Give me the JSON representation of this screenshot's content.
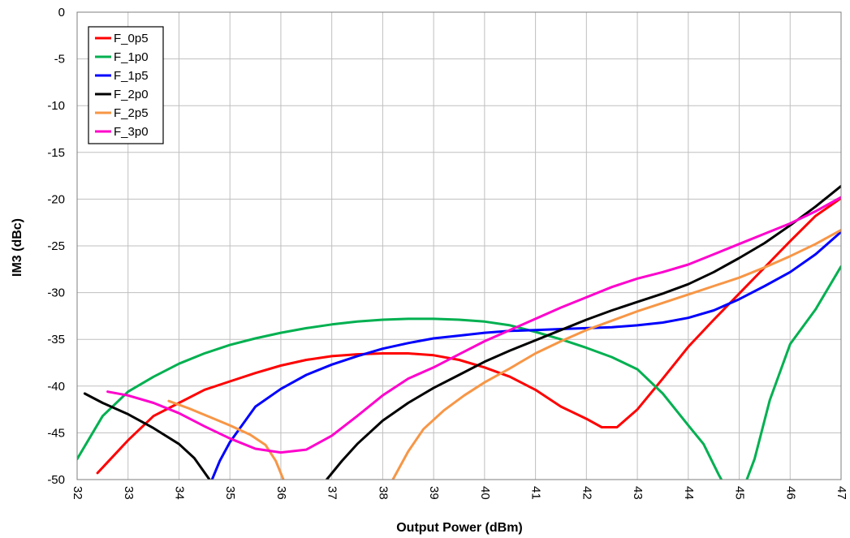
{
  "chart_data": {
    "type": "line",
    "xlabel": "Output Power (dBm)",
    "ylabel": "IM3 (dBc)",
    "xlim": [
      32,
      47
    ],
    "ylim": [
      -50,
      0
    ],
    "x_ticks": [
      "32",
      "33",
      "34",
      "35",
      "36",
      "37",
      "38",
      "39",
      "40",
      "41",
      "42",
      "43",
      "44",
      "45",
      "46",
      "47"
    ],
    "y_ticks": [
      "0",
      "-5",
      "-10",
      "-15",
      "-20",
      "-25",
      "-30",
      "-35",
      "-40",
      "-45",
      "-50"
    ],
    "grid": true,
    "legend_position": "top-left",
    "series": [
      {
        "name": "F_0p5",
        "color": "#ff0000",
        "points": [
          [
            32.4,
            -49.3
          ],
          [
            33,
            -45.8
          ],
          [
            33.5,
            -43.2
          ],
          [
            34,
            -41.8
          ],
          [
            34.5,
            -40.4
          ],
          [
            35,
            -39.5
          ],
          [
            35.5,
            -38.6
          ],
          [
            36,
            -37.8
          ],
          [
            36.5,
            -37.2
          ],
          [
            37,
            -36.8
          ],
          [
            37.5,
            -36.6
          ],
          [
            38,
            -36.5
          ],
          [
            38.5,
            -36.5
          ],
          [
            39,
            -36.7
          ],
          [
            39.5,
            -37.2
          ],
          [
            40,
            -38
          ],
          [
            40.5,
            -39
          ],
          [
            41,
            -40.4
          ],
          [
            41.5,
            -42.2
          ],
          [
            42,
            -43.5
          ],
          [
            42.3,
            -44.4
          ],
          [
            42.6,
            -44.4
          ],
          [
            43,
            -42.5
          ],
          [
            43.5,
            -39.2
          ],
          [
            44,
            -35.8
          ],
          [
            44.5,
            -32.9
          ],
          [
            45,
            -30.1
          ],
          [
            45.5,
            -27.3
          ],
          [
            46,
            -24.5
          ],
          [
            46.5,
            -21.8
          ],
          [
            47,
            -19.9
          ]
        ]
      },
      {
        "name": "F_1p0",
        "color": "#00b050",
        "points": [
          [
            32,
            -47.8
          ],
          [
            32.5,
            -43.2
          ],
          [
            33,
            -40.6
          ],
          [
            33.5,
            -39
          ],
          [
            34,
            -37.6
          ],
          [
            34.5,
            -36.5
          ],
          [
            35,
            -35.6
          ],
          [
            35.5,
            -34.9
          ],
          [
            36,
            -34.3
          ],
          [
            36.5,
            -33.8
          ],
          [
            37,
            -33.4
          ],
          [
            37.5,
            -33.1
          ],
          [
            38,
            -32.9
          ],
          [
            38.5,
            -32.8
          ],
          [
            39,
            -32.8
          ],
          [
            39.5,
            -32.9
          ],
          [
            40,
            -33.1
          ],
          [
            40.5,
            -33.5
          ],
          [
            41,
            -34.2
          ],
          [
            41.5,
            -35
          ],
          [
            42,
            -35.9
          ],
          [
            42.5,
            -36.9
          ],
          [
            43,
            -38.2
          ],
          [
            43.5,
            -40.8
          ],
          [
            44,
            -44.2
          ],
          [
            44.3,
            -46.2
          ],
          [
            44.6,
            -49.5
          ],
          [
            44.65,
            -50
          ]
        ]
      },
      {
        "name": "F_1p0",
        "color": "#00b050",
        "legend": false,
        "points": [
          [
            45.15,
            -50
          ],
          [
            45.3,
            -47.8
          ],
          [
            45.6,
            -41.5
          ],
          [
            46,
            -35.5
          ],
          [
            46.5,
            -31.8
          ],
          [
            47,
            -27.2
          ]
        ]
      },
      {
        "name": "F_1p5",
        "color": "#0000ff",
        "points": [
          [
            34.65,
            -50
          ],
          [
            34.8,
            -48
          ],
          [
            35,
            -46
          ],
          [
            35.5,
            -42.2
          ],
          [
            36,
            -40.3
          ],
          [
            36.5,
            -38.8
          ],
          [
            37,
            -37.7
          ],
          [
            37.5,
            -36.8
          ],
          [
            38,
            -36
          ],
          [
            38.5,
            -35.4
          ],
          [
            39,
            -34.9
          ],
          [
            39.5,
            -34.6
          ],
          [
            40,
            -34.3
          ],
          [
            40.5,
            -34.1
          ],
          [
            41,
            -34
          ],
          [
            41.5,
            -33.9
          ],
          [
            42,
            -33.8
          ],
          [
            42.5,
            -33.7
          ],
          [
            43,
            -33.5
          ],
          [
            43.5,
            -33.2
          ],
          [
            44,
            -32.7
          ],
          [
            44.5,
            -31.9
          ],
          [
            45,
            -30.7
          ],
          [
            45.5,
            -29.3
          ],
          [
            46,
            -27.8
          ],
          [
            46.5,
            -25.9
          ],
          [
            47,
            -23.5
          ]
        ]
      },
      {
        "name": "F_2p0",
        "color": "#000000",
        "points": [
          [
            32.15,
            -40.8
          ],
          [
            32.5,
            -41.8
          ],
          [
            33,
            -43
          ],
          [
            33.5,
            -44.5
          ],
          [
            34,
            -46.2
          ],
          [
            34.3,
            -47.7
          ],
          [
            34.6,
            -50
          ]
        ]
      },
      {
        "name": "F_2p0",
        "color": "#000000",
        "legend": false,
        "points": [
          [
            36.9,
            -50
          ],
          [
            37.2,
            -48
          ],
          [
            37.5,
            -46.2
          ],
          [
            38,
            -43.7
          ],
          [
            38.5,
            -41.8
          ],
          [
            39,
            -40.2
          ],
          [
            39.5,
            -38.8
          ],
          [
            40,
            -37.4
          ],
          [
            40.5,
            -36.2
          ],
          [
            41,
            -35.1
          ],
          [
            41.5,
            -34
          ],
          [
            42,
            -32.9
          ],
          [
            42.5,
            -31.9
          ],
          [
            43,
            -31
          ],
          [
            43.5,
            -30.1
          ],
          [
            44,
            -29.1
          ],
          [
            44.5,
            -27.8
          ],
          [
            45,
            -26.3
          ],
          [
            45.5,
            -24.7
          ],
          [
            46,
            -22.8
          ],
          [
            46.5,
            -20.8
          ],
          [
            47,
            -18.6
          ]
        ]
      },
      {
        "name": "F_2p5",
        "color": "#f79646",
        "points": [
          [
            33.8,
            -41.6
          ],
          [
            34.2,
            -42.4
          ],
          [
            34.6,
            -43.3
          ],
          [
            35,
            -44.2
          ],
          [
            35.4,
            -45.2
          ],
          [
            35.7,
            -46.3
          ],
          [
            35.9,
            -48
          ],
          [
            36.05,
            -50
          ]
        ]
      },
      {
        "name": "F_2p5",
        "color": "#f79646",
        "legend": false,
        "points": [
          [
            38.2,
            -50
          ],
          [
            38.5,
            -47
          ],
          [
            38.8,
            -44.6
          ],
          [
            39.2,
            -42.6
          ],
          [
            39.6,
            -41
          ],
          [
            40,
            -39.6
          ],
          [
            40.5,
            -38.1
          ],
          [
            41,
            -36.5
          ],
          [
            41.5,
            -35.2
          ],
          [
            42,
            -34
          ],
          [
            42.5,
            -33
          ],
          [
            43,
            -32
          ],
          [
            43.5,
            -31.1
          ],
          [
            44,
            -30.2
          ],
          [
            44.5,
            -29.3
          ],
          [
            45,
            -28.4
          ],
          [
            45.5,
            -27.3
          ],
          [
            46,
            -26.1
          ],
          [
            46.5,
            -24.8
          ],
          [
            47,
            -23.3
          ]
        ]
      },
      {
        "name": "F_3p0",
        "color": "#ff00cc",
        "points": [
          [
            32.6,
            -40.6
          ],
          [
            33,
            -41
          ],
          [
            33.5,
            -41.8
          ],
          [
            34,
            -42.9
          ],
          [
            34.5,
            -44.3
          ],
          [
            35,
            -45.6
          ],
          [
            35.5,
            -46.7
          ],
          [
            36,
            -47.1
          ],
          [
            36.5,
            -46.8
          ],
          [
            37,
            -45.3
          ],
          [
            37.5,
            -43.2
          ],
          [
            38,
            -41
          ],
          [
            38.5,
            -39.2
          ],
          [
            39,
            -38
          ],
          [
            39.5,
            -36.6
          ],
          [
            40,
            -35.2
          ],
          [
            40.5,
            -34
          ],
          [
            41,
            -32.8
          ],
          [
            41.5,
            -31.6
          ],
          [
            42,
            -30.5
          ],
          [
            42.5,
            -29.4
          ],
          [
            43,
            -28.5
          ],
          [
            43.5,
            -27.8
          ],
          [
            44,
            -27
          ],
          [
            44.5,
            -25.9
          ],
          [
            45,
            -24.8
          ],
          [
            45.5,
            -23.7
          ],
          [
            46,
            -22.6
          ],
          [
            46.5,
            -21.3
          ],
          [
            47,
            -19.8
          ]
        ]
      }
    ]
  }
}
